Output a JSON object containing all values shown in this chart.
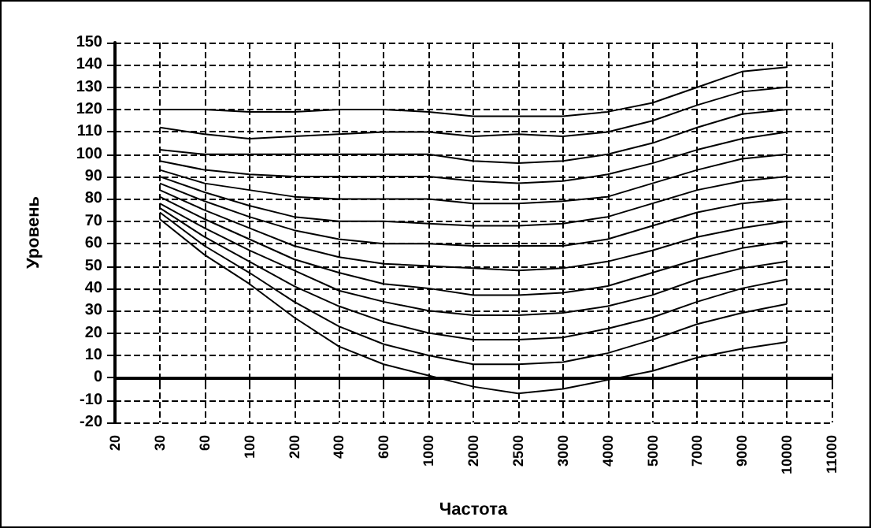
{
  "chart_data": {
    "type": "line",
    "xlabel": "Частота",
    "ylabel": "Уровень",
    "categories": [
      "20",
      "30",
      "60",
      "100",
      "200",
      "400",
      "600",
      "1000",
      "2000",
      "2500",
      "3000",
      "4000",
      "5000",
      "7000",
      "9000",
      "10000",
      "11000"
    ],
    "ylim": [
      -20,
      150
    ],
    "yticks": [
      -20,
      -10,
      0,
      10,
      20,
      30,
      40,
      50,
      60,
      70,
      80,
      90,
      100,
      110,
      120,
      130,
      140,
      150
    ],
    "grid": true,
    "line_style": "solid",
    "marker": "none",
    "series": [
      {
        "color": "#000000",
        "values": [
          null,
          120,
          120,
          119,
          119,
          120,
          120,
          119,
          117,
          117,
          117,
          119,
          123,
          130,
          137,
          139,
          null
        ]
      },
      {
        "color": "#000000",
        "values": [
          null,
          112,
          109,
          107,
          108,
          109,
          110,
          110,
          108,
          109,
          108,
          110,
          115,
          122,
          128,
          130,
          null
        ]
      },
      {
        "color": "#000000",
        "values": [
          null,
          102,
          100,
          100,
          100,
          100,
          100,
          100,
          97,
          96,
          97,
          100,
          105,
          112,
          118,
          120,
          null
        ]
      },
      {
        "color": "#000000",
        "values": [
          null,
          97,
          93,
          91,
          90,
          90,
          90,
          90,
          88,
          87,
          88,
          91,
          96,
          102,
          107,
          110,
          null
        ]
      },
      {
        "color": "#000000",
        "values": [
          null,
          93,
          87,
          84,
          81,
          80,
          80,
          80,
          78,
          78,
          79,
          81,
          87,
          93,
          98,
          100,
          null
        ]
      },
      {
        "color": "#000000",
        "values": [
          null,
          90,
          83,
          77,
          72,
          70,
          70,
          69,
          68,
          68,
          69,
          72,
          78,
          84,
          88,
          90,
          null
        ]
      },
      {
        "color": "#000000",
        "values": [
          null,
          87,
          79,
          72,
          66,
          62,
          60,
          60,
          59,
          59,
          59,
          62,
          68,
          74,
          78,
          80,
          null
        ]
      },
      {
        "color": "#000000",
        "values": [
          null,
          84,
          75,
          67,
          59,
          54,
          51,
          50,
          49,
          48,
          49,
          52,
          57,
          63,
          67,
          70,
          null
        ]
      },
      {
        "color": "#000000",
        "values": [
          null,
          81,
          71,
          62,
          53,
          47,
          42,
          40,
          37,
          37,
          38,
          41,
          47,
          53,
          58,
          61,
          null
        ]
      },
      {
        "color": "#000000",
        "values": [
          null,
          78,
          67,
          57,
          48,
          39,
          34,
          30,
          28,
          28,
          29,
          32,
          37,
          44,
          49,
          52,
          null
        ]
      },
      {
        "color": "#000000",
        "values": [
          null,
          76,
          63,
          52,
          41,
          32,
          25,
          20,
          17,
          17,
          18,
          22,
          27,
          34,
          40,
          44,
          null
        ]
      },
      {
        "color": "#000000",
        "values": [
          null,
          74,
          59,
          47,
          34,
          23,
          15,
          10,
          6,
          6,
          7,
          11,
          17,
          24,
          29,
          33,
          null
        ]
      },
      {
        "color": "#000000",
        "values": [
          null,
          71,
          55,
          42,
          27,
          14,
          6,
          1,
          -4,
          -7,
          -5,
          -1,
          3,
          9,
          13,
          16,
          null
        ]
      }
    ]
  }
}
